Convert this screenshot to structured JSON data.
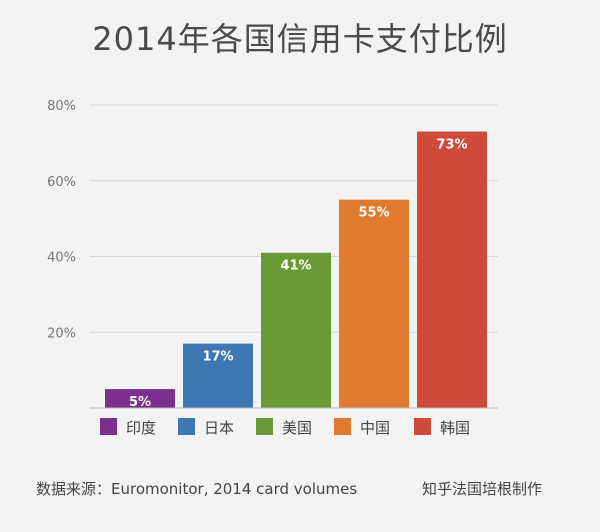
{
  "page": {
    "title": "2014年各国信用卡支付比例",
    "source": "数据来源：Euromonitor, 2014 card volumes",
    "credit": "知乎法国培根制作"
  },
  "chart_data": {
    "type": "bar",
    "title": "2014年各国信用卡支付比例",
    "categories": [
      "印度",
      "日本",
      "美国",
      "中国",
      "韩国"
    ],
    "values": [
      5,
      17,
      41,
      55,
      73
    ],
    "data_labels": [
      "5%",
      "17%",
      "41%",
      "55%",
      "73%"
    ],
    "colors": [
      "#7b2f8e",
      "#3e78b4",
      "#6a9a35",
      "#e07a2f",
      "#d04a3a"
    ],
    "yticks": [
      20,
      40,
      60,
      80
    ],
    "ytick_labels": [
      "20%",
      "40%",
      "60%",
      "80%"
    ],
    "ylim": [
      0,
      80
    ],
    "grid": true,
    "legend": "bottom",
    "xlabel": "",
    "ylabel": ""
  }
}
